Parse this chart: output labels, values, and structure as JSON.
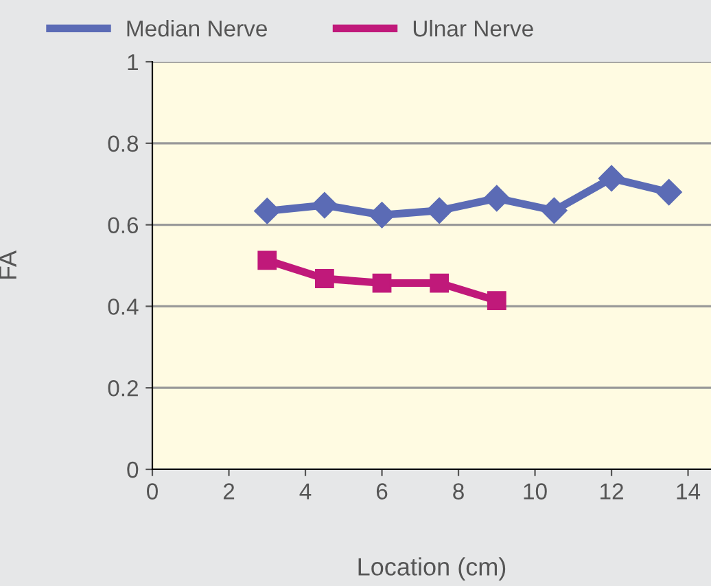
{
  "chart_data": {
    "type": "line",
    "xlabel": "Location (cm)",
    "ylabel": "FA",
    "x": [
      3,
      4.5,
      6,
      7.5,
      9,
      10.5,
      12,
      13.5
    ],
    "series": [
      {
        "name": "Median Nerve",
        "color": "#5b6bb5",
        "marker": "diamond",
        "values": [
          0.634,
          0.648,
          0.624,
          0.635,
          0.665,
          0.635,
          0.714,
          0.68
        ]
      },
      {
        "name": "Ulnar Nerve",
        "color": "#c0197a",
        "marker": "square",
        "values": [
          0.513,
          0.468,
          0.457,
          0.457,
          0.414,
          null,
          null,
          null
        ]
      }
    ],
    "xlim": [
      0,
      14.6
    ],
    "xticks": [
      0,
      2,
      4,
      6,
      8,
      10,
      12,
      14
    ],
    "ylim": [
      0,
      1
    ],
    "yticks": [
      0,
      0.2,
      0.4,
      0.6,
      0.8,
      1
    ],
    "grid": "y",
    "legend": "top",
    "line_style": "solid"
  }
}
